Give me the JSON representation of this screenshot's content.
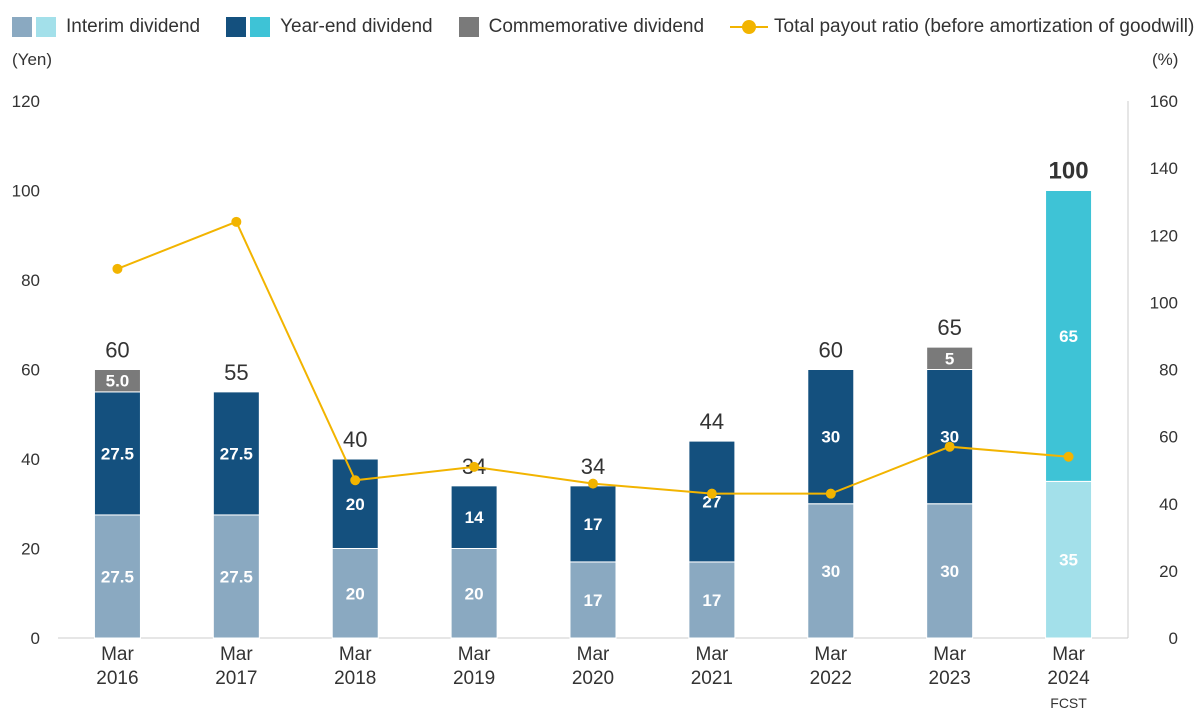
{
  "legend": {
    "interim": "Interim dividend",
    "yearend": "Year-end dividend",
    "commemorative": "Commemorative dividend",
    "payout": "Total payout ratio (before amortization of goodwill)"
  },
  "axes": {
    "left_unit": "(Yen)",
    "right_unit": "(%)"
  },
  "colors": {
    "interim": "#8aa9c1",
    "interim_fcst": "#a3e0ea",
    "yearend": "#14507e",
    "yearend_fcst": "#3ec3d6",
    "commemorative": "#7a7a7a",
    "payout_line": "#f2b400",
    "axis": "#cccccc",
    "text": "#333333"
  },
  "chart_data": {
    "type": "bar",
    "stacked": true,
    "categories": [
      [
        "Mar",
        "2016"
      ],
      [
        "Mar",
        "2017"
      ],
      [
        "Mar",
        "2018"
      ],
      [
        "Mar",
        "2019"
      ],
      [
        "Mar",
        "2020"
      ],
      [
        "Mar",
        "2021"
      ],
      [
        "Mar",
        "2022"
      ],
      [
        "Mar",
        "2023"
      ],
      [
        "Mar",
        "2024",
        "FCST"
      ]
    ],
    "series": [
      {
        "name": "Interim dividend",
        "key": "interim",
        "values": [
          27.5,
          27.5,
          20,
          20,
          17,
          17,
          30,
          30,
          35
        ],
        "labels": [
          "27.5",
          "27.5",
          "20",
          "20",
          "17",
          "17",
          "30",
          "30",
          "35"
        ]
      },
      {
        "name": "Year-end dividend",
        "key": "yearend",
        "values": [
          27.5,
          27.5,
          20,
          14,
          17,
          27,
          30,
          30,
          65
        ],
        "labels": [
          "27.5",
          "27.5",
          "20",
          "14",
          "17",
          "27",
          "30",
          "30",
          "65"
        ]
      },
      {
        "name": "Commemorative dividend",
        "key": "commemorative",
        "values": [
          5,
          0,
          0,
          0,
          0,
          0,
          0,
          5,
          0
        ],
        "labels": [
          "5.0",
          "",
          "",
          "",
          "",
          "",
          "",
          "5",
          ""
        ]
      }
    ],
    "totals": [
      "60",
      "55",
      "40",
      "34",
      "34",
      "44",
      "60",
      "65",
      "100"
    ],
    "payout_ratio": {
      "name": "Total payout ratio (before amortization of goodwill)",
      "values": [
        110,
        124,
        47,
        51,
        46,
        43,
        43,
        57,
        54
      ]
    },
    "forecast_index": 8,
    "ylim_left": [
      0,
      120
    ],
    "yticks_left": [
      0,
      20,
      40,
      60,
      80,
      100,
      120
    ],
    "ylim_right": [
      0,
      160
    ],
    "yticks_right": [
      0,
      20,
      40,
      60,
      80,
      100,
      120,
      140,
      160
    ],
    "grid": false,
    "legend_position": "top"
  }
}
